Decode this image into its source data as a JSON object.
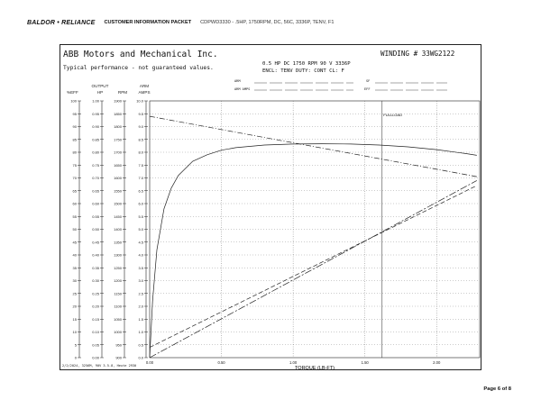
{
  "header": {
    "brand": "BALDOR • RELIANCE",
    "packet_title": "CUSTOMER INFORMATION PACKET",
    "model_ref": "CDPWD3330 - .5HP, 1750RPM, DC, 56C, 3336P, TENV, F1"
  },
  "sheet": {
    "company": "ABB Motors and Mechanical Inc.",
    "typical": "Typical performance - not guaranteed values.",
    "winding": "WINDING # 33WG2122",
    "spec_line1": "0.5 HP  DC  1750 RPM  90 V  3336P",
    "spec_line2": "ENCL: TENV  DUTY: CONT  CL: F",
    "field_arm": "ARM",
    "field_arm_amps": "ARM AMPS",
    "field_sf": "SF",
    "field_eff": "EFF",
    "footer": "2/2/2024, 3256M, 90V 3.5.8, Heute 2930",
    "full_load_label": "FULLLOAD"
  },
  "page": {
    "number_label": "Page 6 of 8"
  },
  "colors": {
    "line": "#222222",
    "grid": "#555555"
  },
  "chart_data": {
    "type": "line",
    "xlabel": "TORQUE (LB-FT)",
    "xlim": [
      0,
      2.3
    ],
    "x_ticks": [
      "0.00",
      "0.50",
      "1.00",
      "1.50",
      "2.00"
    ],
    "full_load_torque": 1.62,
    "grid": true,
    "axes": [
      {
        "name": "%EFF",
        "header": [
          "",
          "%EFF"
        ],
        "ticks": [
          "100",
          "95",
          "90",
          "85",
          "80",
          "75",
          "70",
          "65",
          "60",
          "55",
          "50",
          "45",
          "40",
          "35",
          "30",
          "25",
          "20",
          "15",
          "10",
          "5",
          "0"
        ]
      },
      {
        "name": "OUTPUT HP",
        "header": [
          "OUTPUT",
          "HP"
        ],
        "ticks": [
          "1.00",
          "0.95",
          "0.90",
          "0.85",
          "0.80",
          "0.75",
          "0.70",
          "0.65",
          "0.60",
          "0.55",
          "0.50",
          "0.45",
          "0.40",
          "0.35",
          "0.30",
          "0.25",
          "0.20",
          "0.15",
          "0.10",
          "0.05",
          "0.00"
        ]
      },
      {
        "name": "RPM",
        "header": [
          "",
          "RPM"
        ],
        "ticks": [
          "1900",
          "1850",
          "1800",
          "1750",
          "1700",
          "1650",
          "1600",
          "1550",
          "1500",
          "1450",
          "1400",
          "1350",
          "1300",
          "1250",
          "1200",
          "1150",
          "1100",
          "1050",
          "1000",
          "950",
          "900"
        ]
      },
      {
        "name": "ARM AMPS",
        "header": [
          "ARM",
          "AMPS"
        ],
        "ticks": [
          "10.0",
          "9.5",
          "9.0",
          "8.5",
          "8.0",
          "7.5",
          "7.0",
          "6.5",
          "6.0",
          "5.5",
          "5.0",
          "4.5",
          "4.0",
          "3.5",
          "3.0",
          "2.5",
          "2.0",
          "1.5",
          "1.0",
          "0.5",
          "0.0"
        ]
      }
    ],
    "series": [
      {
        "style": "solid",
        "unit": "%EFF",
        "x": [
          0,
          0.02,
          0.05,
          0.1,
          0.15,
          0.2,
          0.3,
          0.4,
          0.5,
          0.6,
          0.8,
          1.0,
          1.2,
          1.4,
          1.6,
          1.8,
          2.0,
          2.2,
          2.28
        ],
        "y": [
          0,
          22,
          42,
          58,
          66,
          71,
          76.5,
          79,
          80.8,
          81.8,
          82.8,
          83.2,
          83.3,
          83.2,
          82.8,
          82.1,
          81,
          79.5,
          78.8
        ]
      },
      {
        "style": "dashdot",
        "unit": "RPM",
        "x": [
          0,
          2.28
        ],
        "y": [
          1840,
          1605
        ]
      },
      {
        "style": "dashed",
        "unit": "ARM AMPS",
        "x": [
          0,
          2.28
        ],
        "y": [
          0.4,
          6.7
        ]
      },
      {
        "style": "dashdot2",
        "unit": "OUTPUT HP",
        "x": [
          0,
          2.28
        ],
        "y": [
          0,
          0.69
        ]
      }
    ]
  }
}
